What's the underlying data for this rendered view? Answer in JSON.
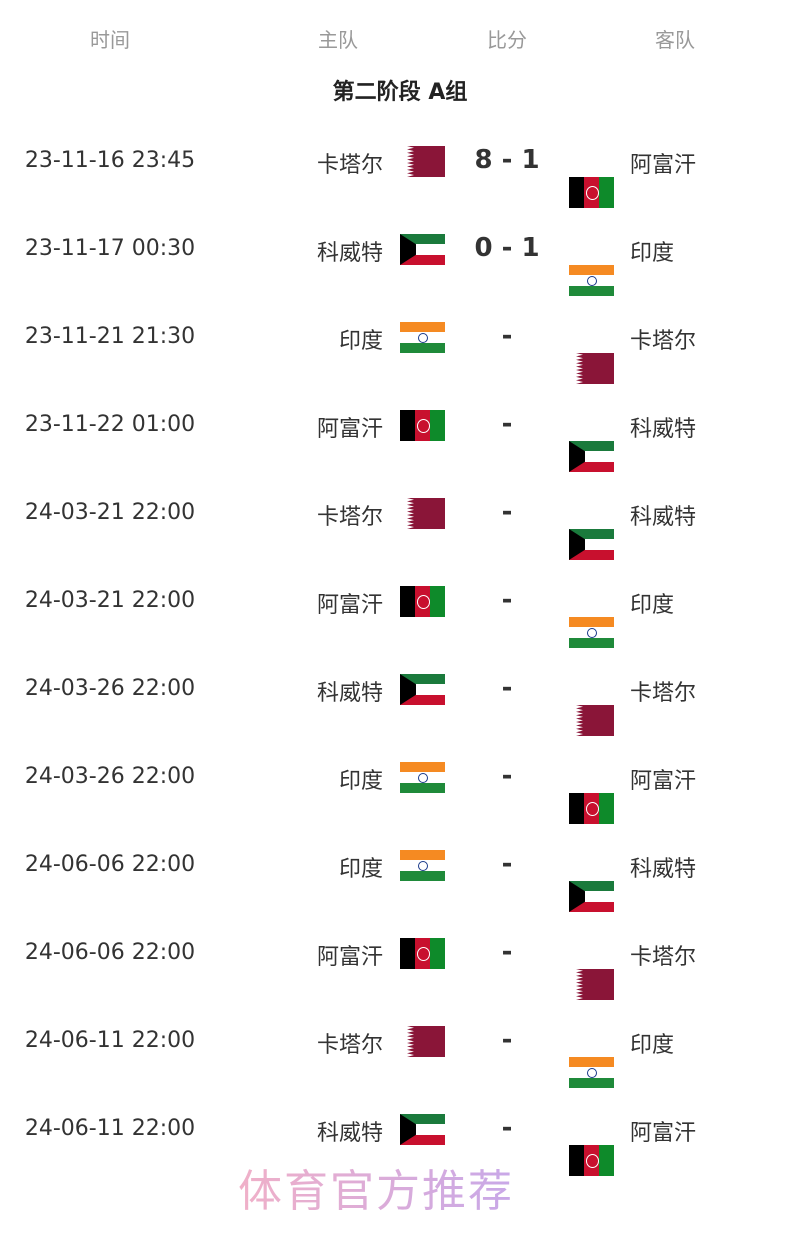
{
  "header": {
    "time": "时间",
    "home": "主队",
    "score": "比分",
    "away": "客队"
  },
  "title": "第二阶段 A组",
  "teams": {
    "qa": "卡塔尔",
    "kw": "科威特",
    "in": "印度",
    "af": "阿富汗"
  },
  "matches": [
    {
      "time": "23-11-16 23:45",
      "home": "卡塔尔",
      "home_flag": "qa",
      "score": "8 - 1",
      "away": "阿富汗",
      "away_flag": "af"
    },
    {
      "time": "23-11-17 00:30",
      "home": "科威特",
      "home_flag": "kw",
      "score": "0 - 1",
      "away": "印度",
      "away_flag": "in"
    },
    {
      "time": "23-11-21 21:30",
      "home": "印度",
      "home_flag": "in",
      "score": "-",
      "away": "卡塔尔",
      "away_flag": "qa"
    },
    {
      "time": "23-11-22 01:00",
      "home": "阿富汗",
      "home_flag": "af",
      "score": "-",
      "away": "科威特",
      "away_flag": "kw"
    },
    {
      "time": "24-03-21 22:00",
      "home": "卡塔尔",
      "home_flag": "qa",
      "score": "-",
      "away": "科威特",
      "away_flag": "kw"
    },
    {
      "time": "24-03-21 22:00",
      "home": "阿富汗",
      "home_flag": "af",
      "score": "-",
      "away": "印度",
      "away_flag": "in"
    },
    {
      "time": "24-03-26 22:00",
      "home": "科威特",
      "home_flag": "kw",
      "score": "-",
      "away": "卡塔尔",
      "away_flag": "qa"
    },
    {
      "time": "24-03-26 22:00",
      "home": "印度",
      "home_flag": "in",
      "score": "-",
      "away": "阿富汗",
      "away_flag": "af"
    },
    {
      "time": "24-06-06 22:00",
      "home": "印度",
      "home_flag": "in",
      "score": "-",
      "away": "科威特",
      "away_flag": "kw"
    },
    {
      "time": "24-06-06 22:00",
      "home": "阿富汗",
      "home_flag": "af",
      "score": "-",
      "away": "卡塔尔",
      "away_flag": "qa"
    },
    {
      "time": "24-06-11 22:00",
      "home": "卡塔尔",
      "home_flag": "qa",
      "score": "-",
      "away": "印度",
      "away_flag": "in"
    },
    {
      "time": "24-06-11 22:00",
      "home": "科威特",
      "home_flag": "kw",
      "score": "-",
      "away": "阿富汗",
      "away_flag": "af"
    }
  ],
  "watermark": "体育官方推荐"
}
